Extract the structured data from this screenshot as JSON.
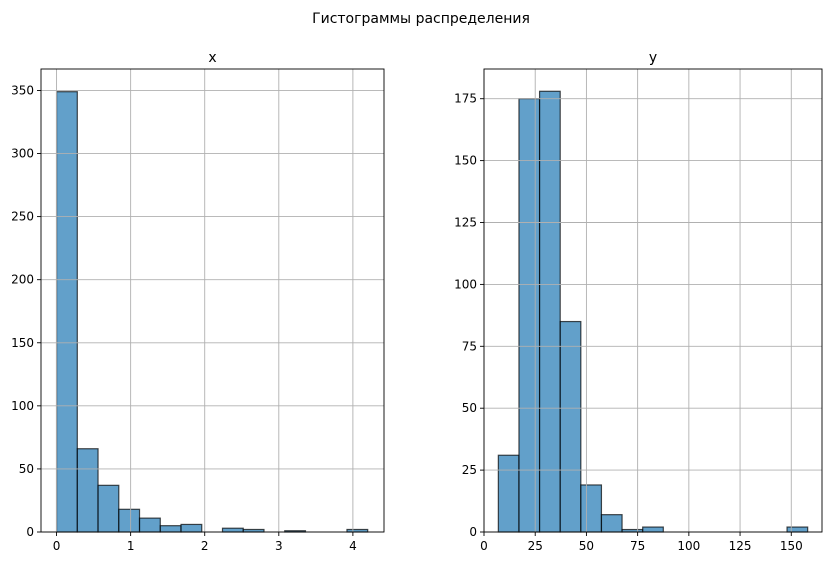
{
  "figure": {
    "suptitle": "Гистограммы распределения"
  },
  "chart_data": [
    {
      "type": "bar",
      "subtype": "histogram",
      "title": "x",
      "grid": true,
      "xlim": [
        -0.21,
        4.42
      ],
      "ylim": [
        0,
        367
      ],
      "xticks": [
        0,
        1,
        2,
        3,
        4
      ],
      "yticks": [
        0,
        50,
        100,
        150,
        200,
        250,
        300,
        350
      ],
      "bin_edges": [
        0.0,
        0.28,
        0.56,
        0.84,
        1.12,
        1.4,
        1.68,
        1.96,
        2.24,
        2.52,
        2.8,
        3.08,
        3.36,
        3.64,
        3.92,
        4.2
      ],
      "values": [
        349,
        66,
        37,
        18,
        11,
        5,
        6,
        0,
        3,
        2,
        0,
        1,
        0,
        0,
        2
      ],
      "color": "#1f77b4"
    },
    {
      "type": "bar",
      "subtype": "histogram",
      "title": "y",
      "grid": true,
      "xlim": [
        0,
        165
      ],
      "ylim": [
        0,
        187
      ],
      "xticks": [
        0,
        25,
        50,
        75,
        100,
        125,
        150
      ],
      "yticks": [
        0,
        25,
        50,
        75,
        100,
        125,
        150,
        175
      ],
      "bin_edges": [
        7,
        17.07,
        27.13,
        37.2,
        47.27,
        57.33,
        67.4,
        77.47,
        87.53,
        97.6,
        107.67,
        117.73,
        127.8,
        137.87,
        147.93,
        158
      ],
      "values": [
        31,
        175,
        178,
        85,
        19,
        7,
        1,
        2,
        0,
        0,
        0,
        0,
        0,
        0,
        2
      ],
      "color": "#1f77b4"
    }
  ]
}
